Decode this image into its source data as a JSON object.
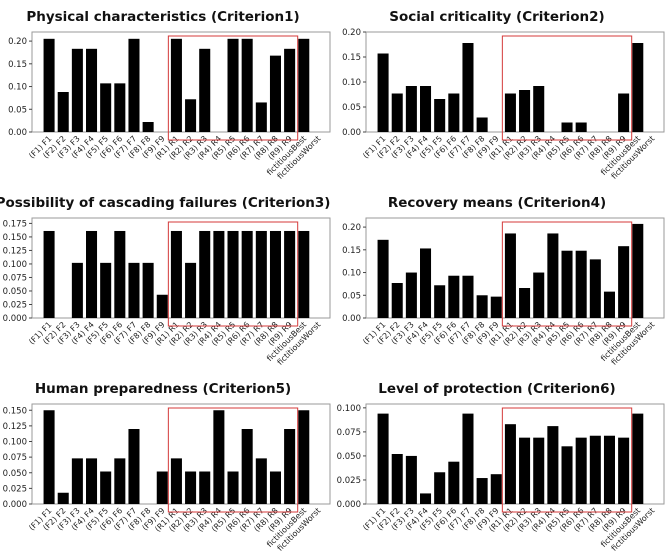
{
  "chart_data": [
    {
      "type": "bar",
      "title": "Physical characteristics (Criterion1)",
      "categories": [
        "(F1) F1",
        "(F2) F2",
        "(F3) F3",
        "(F4) F4",
        "(F5) F5",
        "(F6) F6",
        "(F7) F7",
        "(F8) F8",
        "(F9) F9",
        "(R1) R1",
        "(R2) R2",
        "(R3) R3",
        "(R4) R4",
        "(R5) R5",
        "(R6) R6",
        "(R7) R7",
        "(R8) R8",
        "(R9) R9",
        "fictitiousBest",
        "fictitiousWorst"
      ],
      "values": [
        0.205,
        0.088,
        0.183,
        0.183,
        0.107,
        0.107,
        0.205,
        0.022,
        0.0,
        0.205,
        0.072,
        0.183,
        0.0,
        0.205,
        0.205,
        0.065,
        0.168,
        0.183,
        0.205,
        0.0
      ],
      "yticks": [
        "0.00",
        "0.05",
        "0.10",
        "0.15",
        "0.20"
      ],
      "ylim": [
        0,
        0.22
      ],
      "highlight": {
        "from": "(R1) R1",
        "to": "(R9) R9"
      }
    },
    {
      "type": "bar",
      "title": "Social criticality (Criterion2)",
      "categories": [
        "(F1) F1",
        "(F2) F2",
        "(F3) F3",
        "(F4) F4",
        "(F5) F5",
        "(F6) F6",
        "(F7) F7",
        "(F8) F8",
        "(F9) F9",
        "(R1) R1",
        "(R2) R2",
        "(R3) R3",
        "(R4) R4",
        "(R5) R5",
        "(R6) R6",
        "(R7) R7",
        "(R8) R8",
        "(R9) R9",
        "fictitiousBest",
        "fictitiousWorst"
      ],
      "values": [
        0.157,
        0.077,
        0.092,
        0.092,
        0.066,
        0.077,
        0.178,
        0.029,
        0.0,
        0.077,
        0.084,
        0.092,
        0.0,
        0.019,
        0.019,
        0.0,
        0.0,
        0.077,
        0.178,
        0.0
      ],
      "yticks": [
        "0.00",
        "0.05",
        "0.10",
        "0.15",
        "0.20"
      ],
      "ylim": [
        0,
        0.2
      ],
      "highlight": {
        "from": "(R1) R1",
        "to": "(R9) R9"
      }
    },
    {
      "type": "bar",
      "title": "Possibility of cascading failures (Criterion3)",
      "categories": [
        "(F1) F1",
        "(F2) F2",
        "(F3) F3",
        "(F4) F4",
        "(F5) F5",
        "(F6) F6",
        "(F7) F7",
        "(F8) F8",
        "(F9) F9",
        "(R1) R1",
        "(R2) R2",
        "(R3) R3",
        "(R4) R4",
        "(R5) R5",
        "(R6) R6",
        "(R7) R7",
        "(R8) R8",
        "(R9) R9",
        "fictitiousBest",
        "fictitiousWorst"
      ],
      "values": [
        0.161,
        0.0,
        0.102,
        0.161,
        0.102,
        0.161,
        0.102,
        0.102,
        0.043,
        0.161,
        0.102,
        0.161,
        0.161,
        0.161,
        0.161,
        0.161,
        0.161,
        0.161,
        0.161,
        0.0
      ],
      "yticks": [
        "0.000",
        "0.025",
        "0.050",
        "0.075",
        "0.100",
        "0.125",
        "0.150",
        "0.175"
      ],
      "ylim": [
        0,
        0.185
      ],
      "highlight": {
        "from": "(R1) R1",
        "to": "(R9) R9"
      }
    },
    {
      "type": "bar",
      "title": "Recovery means (Criterion4)",
      "categories": [
        "(F1) F1",
        "(F2) F2",
        "(F3) F3",
        "(F4) F4",
        "(F5) F5",
        "(F6) F6",
        "(F7) F7",
        "(F8) F8",
        "(F9) F9",
        "(R1) R1",
        "(R2) R2",
        "(R3) R3",
        "(R4) R4",
        "(R5) R5",
        "(R6) R6",
        "(R7) R7",
        "(R8) R8",
        "(R9) R9",
        "fictitiousBest",
        "fictitiousWorst"
      ],
      "values": [
        0.172,
        0.077,
        0.1,
        0.153,
        0.072,
        0.093,
        0.093,
        0.05,
        0.047,
        0.186,
        0.066,
        0.1,
        0.186,
        0.148,
        0.148,
        0.129,
        0.058,
        0.158,
        0.207,
        0.0
      ],
      "yticks": [
        "0.00",
        "0.05",
        "0.10",
        "0.15",
        "0.20"
      ],
      "ylim": [
        0,
        0.22
      ],
      "highlight": {
        "from": "(R1) R1",
        "to": "(R9) R9"
      }
    },
    {
      "type": "bar",
      "title": "Human preparedness (Criterion5)",
      "categories": [
        "(F1) F1",
        "(F2) F2",
        "(F3) F3",
        "(F4) F4",
        "(F5) F5",
        "(F6) F6",
        "(F7) F7",
        "(F8) F8",
        "(F9) F9",
        "(R1) R1",
        "(R2) R2",
        "(R3) R3",
        "(R4) R4",
        "(R5) R5",
        "(R6) R6",
        "(R7) R7",
        "(R8) R8",
        "(R9) R9",
        "fictitiousBest",
        "fictitiousWorst"
      ],
      "values": [
        0.15,
        0.018,
        0.073,
        0.073,
        0.052,
        0.073,
        0.12,
        0.0,
        0.052,
        0.073,
        0.052,
        0.052,
        0.15,
        0.052,
        0.12,
        0.073,
        0.052,
        0.12,
        0.15,
        0.0
      ],
      "yticks": [
        "0.000",
        "0.025",
        "0.050",
        "0.075",
        "0.100",
        "0.125",
        "0.150"
      ],
      "ylim": [
        0,
        0.16
      ],
      "highlight": {
        "from": "(R1) R1",
        "to": "(R9) R9"
      }
    },
    {
      "type": "bar",
      "title": "Level of protection (Criterion6)",
      "categories": [
        "(F1) F1",
        "(F2) F2",
        "(F3) F3",
        "(F4) F4",
        "(F5) F5",
        "(F6) F6",
        "(F7) F7",
        "(F8) F8",
        "(F9) F9",
        "(R1) R1",
        "(R2) R2",
        "(R3) R3",
        "(R4) R4",
        "(R5) R5",
        "(R6) R6",
        "(R7) R7",
        "(R8) R8",
        "(R9) R9",
        "fictitiousBest",
        "fictitiousWorst"
      ],
      "values": [
        0.094,
        0.052,
        0.05,
        0.011,
        0.033,
        0.044,
        0.094,
        0.027,
        0.031,
        0.083,
        0.069,
        0.069,
        0.081,
        0.06,
        0.069,
        0.071,
        0.071,
        0.069,
        0.094,
        0.0
      ],
      "yticks": [
        "0.000",
        "0.025",
        "0.050",
        "0.075",
        "0.100"
      ],
      "ylim": [
        0,
        0.104
      ],
      "highlight": {
        "from": "(R1) R1",
        "to": "(R9) R9"
      }
    }
  ],
  "colors": {
    "bar": "#000000",
    "highlight": "#d43a3a",
    "frame": "#9a9a9a"
  }
}
